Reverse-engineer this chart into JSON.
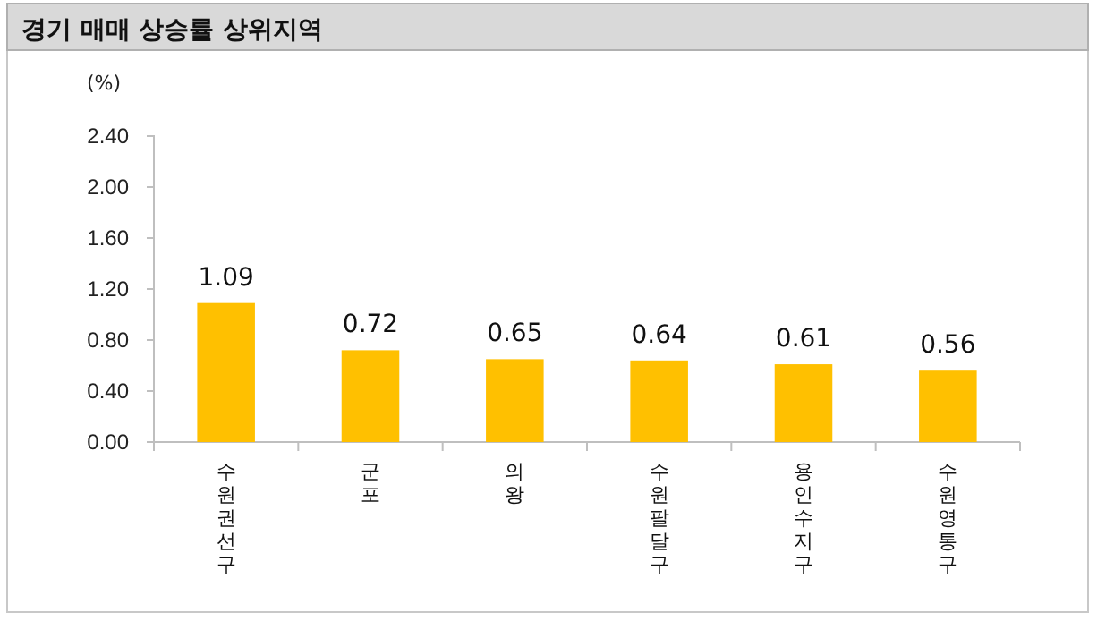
{
  "chart_data": {
    "type": "bar",
    "title": "경기 매매 상승률 상위지역",
    "ylabel": "(%)",
    "categories": [
      "수원권선구",
      "군포",
      "의왕",
      "수원팔달구",
      "용인수지구",
      "수원영통구"
    ],
    "values": [
      1.09,
      0.72,
      0.65,
      0.64,
      0.61,
      0.56
    ],
    "color": "#ffc000",
    "ylim": [
      0,
      2.4
    ],
    "yticks": [
      {
        "value": 0,
        "label": "0.00"
      },
      {
        "value": 0.4,
        "label": "0.40"
      },
      {
        "value": 0.8,
        "label": "0.80"
      },
      {
        "value": 1.2,
        "label": "1.20"
      },
      {
        "value": 1.6,
        "label": "1.60"
      },
      {
        "value": 2,
        "label": "2.00"
      },
      {
        "value": 2.4,
        "label": "2.40"
      }
    ],
    "data_labels": true,
    "grid": false
  }
}
